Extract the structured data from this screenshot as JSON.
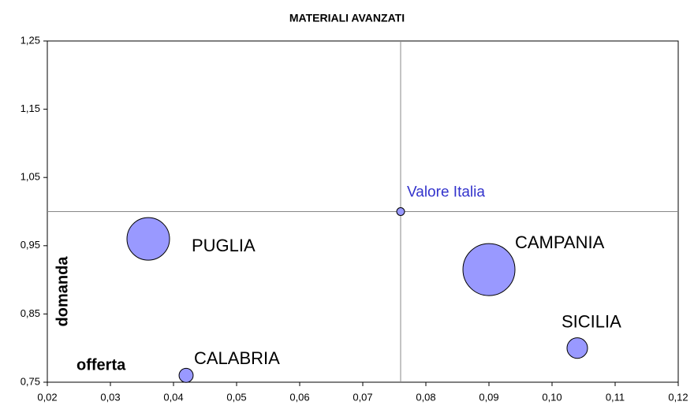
{
  "chart_data": {
    "type": "bubble",
    "title": "MATERIALI AVANZATI",
    "x_label": "offerta",
    "y_label": "domanda",
    "color": "#9999ff",
    "edge_color": "#000000",
    "points": [
      {
        "label": "PUGLIA",
        "x": 0.036,
        "y": 0.96,
        "size": 73,
        "label_color": "#000000"
      },
      {
        "label": "CALABRIA",
        "x": 0.042,
        "y": 0.76,
        "size": 8,
        "label_color": "#000000"
      },
      {
        "label": "Valore Italia",
        "x": 0.076,
        "y": 1.0,
        "size": 2.5,
        "label_color": "#3333cc",
        "reference": true
      },
      {
        "label": "CAMPANIA",
        "x": 0.09,
        "y": 0.915,
        "size": 109,
        "label_color": "#000000"
      },
      {
        "label": "SICILIA",
        "x": 0.104,
        "y": 0.8,
        "size": 17,
        "label_color": "#000000"
      }
    ],
    "xlim": [
      0.02,
      0.12
    ],
    "xticks": [
      {
        "value": 0.02,
        "label": "0,02"
      },
      {
        "value": 0.03,
        "label": "0,03"
      },
      {
        "value": 0.04,
        "label": "0,04"
      },
      {
        "value": 0.05,
        "label": "0,05"
      },
      {
        "value": 0.06,
        "label": "0,06"
      },
      {
        "value": 0.07,
        "label": "0,07"
      },
      {
        "value": 0.08,
        "label": "0,08"
      },
      {
        "value": 0.09,
        "label": "0,09"
      },
      {
        "value": 0.1,
        "label": "0,10"
      },
      {
        "value": 0.11,
        "label": "0,11"
      },
      {
        "value": 0.12,
        "label": "0,12"
      }
    ],
    "ylim": [
      0.75,
      1.25
    ],
    "yticks": [
      {
        "value": 0.75,
        "label": "0,75"
      },
      {
        "value": 0.85,
        "label": "0,85"
      },
      {
        "value": 0.95,
        "label": "0,95"
      },
      {
        "value": 1.05,
        "label": "1,05"
      },
      {
        "value": 1.15,
        "label": "1,15"
      },
      {
        "value": 1.25,
        "label": "1,25"
      }
    ]
  }
}
